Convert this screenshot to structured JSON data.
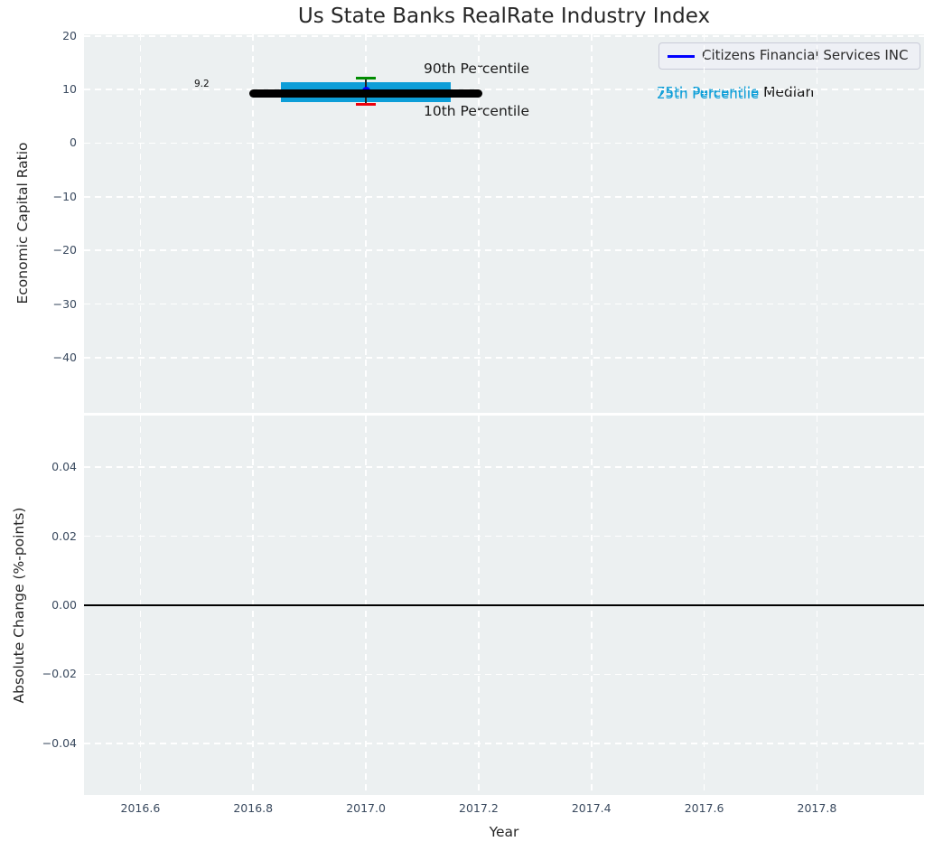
{
  "figure": {
    "title": "Us State Banks RealRate Industry Index"
  },
  "colors": {
    "axes_background": "#ecf0f1",
    "grid": "#ffffff",
    "tick_label": "#3a4a5f",
    "text_dark": "#1a1a1a",
    "band_cyan": "#0d9ed8",
    "median_black": "#000000",
    "p90_green": "#008c00",
    "p10_red": "#ed000b",
    "company_blue": "#0000ff",
    "zero_line": "#000000"
  },
  "legend": {
    "label": "Citizens Financial Services INC",
    "line_color": "#0000ff"
  },
  "annotations": {
    "value_label": "9.2",
    "p90_label": "90th Percentile",
    "p10_label": "10th Percentile",
    "p25_label": "25th Percentile",
    "p75_label": "75th Percentile",
    "median_label": "Median"
  },
  "chart_data": [
    {
      "type": "line",
      "title": "Us State Banks RealRate Industry Index",
      "ylabel": "Economic Capital Ratio",
      "xlim": [
        2016.5,
        2017.99
      ],
      "ylim": [
        -50.3,
        20.3
      ],
      "yticks": [
        20,
        10,
        0,
        -10,
        -20,
        -30,
        -40
      ],
      "grid": "dashed-white",
      "legend_position": "upper right",
      "series": [
        {
          "name": "Citizens Financial Services INC",
          "kind": "scatter",
          "color": "#0000ff",
          "x": [
            2017.0
          ],
          "y": [
            9.2
          ],
          "point_label": "9.2"
        },
        {
          "name": "Median",
          "kind": "line",
          "color": "#000000",
          "linewidth": 9,
          "x": [
            2016.8,
            2017.2
          ],
          "y": [
            9.2,
            9.2
          ]
        },
        {
          "name": "25th-75th Percentile band",
          "kind": "area",
          "color": "#0d9ed8",
          "x": [
            2016.85,
            2017.15
          ],
          "y_low": 7.6,
          "y_high": 11.3
        },
        {
          "name": "90th Percentile",
          "kind": "errorbar-cap",
          "color": "#008c00",
          "x": [
            2017.0
          ],
          "y": [
            12.2
          ]
        },
        {
          "name": "10th Percentile",
          "kind": "errorbar-cap",
          "color": "#ed000b",
          "x": [
            2017.0
          ],
          "y": [
            7.2
          ]
        }
      ]
    },
    {
      "type": "line",
      "ylabel": "Absolute Change (%-points)",
      "xlabel": "Year",
      "xlim": [
        2016.5,
        2017.99
      ],
      "ylim": [
        -0.055,
        0.055
      ],
      "yticks": [
        0.04,
        0.02,
        0.0,
        -0.02,
        -0.04
      ],
      "xticks": [
        2016.6,
        2016.8,
        2017.0,
        2017.2,
        2017.4,
        2017.6,
        2017.8
      ],
      "grid": "dashed-white",
      "series": [
        {
          "name": "zero line",
          "kind": "line",
          "color": "#000000",
          "linewidth": 1.8,
          "x": [
            2016.5,
            2017.99
          ],
          "y": [
            0,
            0
          ]
        }
      ]
    }
  ]
}
